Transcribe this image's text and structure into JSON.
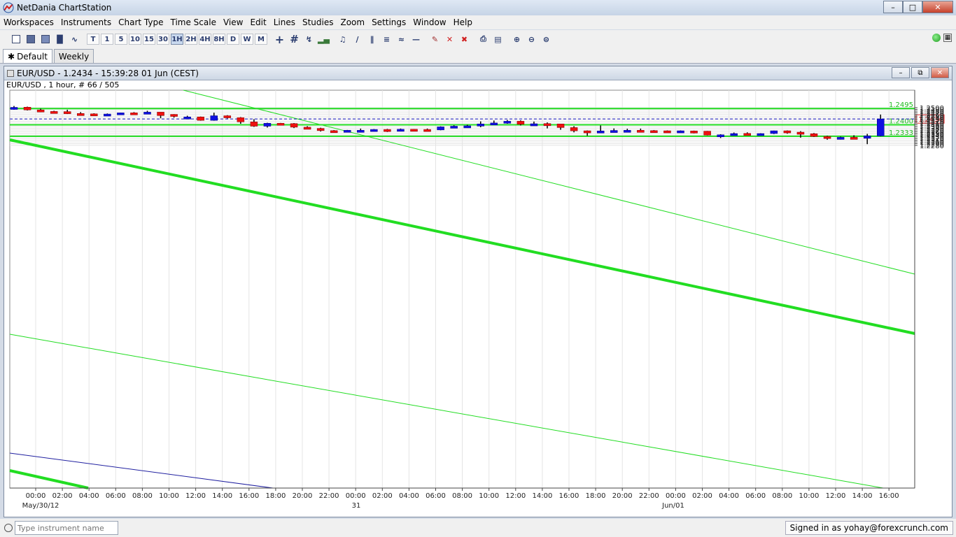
{
  "window": {
    "title": "NetDania ChartStation"
  },
  "menu": [
    "Workspaces",
    "Instruments",
    "Chart Type",
    "Time Scale",
    "View",
    "Edit",
    "Lines",
    "Studies",
    "Zoom",
    "Settings",
    "Window",
    "Help"
  ],
  "timescale_buttons": [
    "T",
    "1",
    "5",
    "10",
    "15",
    "30",
    "1H",
    "2H",
    "4H",
    "8H",
    "D",
    "W",
    "M"
  ],
  "active_timescale": "1H",
  "tabs": [
    "Default",
    "Weekly"
  ],
  "chart_window": {
    "title": "EUR/USD - 1.2434 - 15:39:28  01 Jun (CEST)",
    "info": "EUR/USD , 1 hour, # 66 / 505"
  },
  "search": {
    "placeholder": "Type instrument name"
  },
  "status": {
    "signed_in": "Signed in as yohay@forexcrunch.com"
  },
  "colors": {
    "up": "#1010e0",
    "down": "#ee1010",
    "trend": "#22dd22",
    "last_price_line": "#2020cc"
  },
  "chart_data": {
    "type": "candlestick",
    "title": "",
    "symbol": "EUR/USD",
    "interval": "1 hour",
    "ylim": [
      1.2275,
      1.251
    ],
    "yticks": [
      1.25,
      1.249,
      1.248,
      1.247,
      1.246,
      1.245,
      1.244,
      1.243,
      1.242,
      1.241,
      1.24,
      1.239,
      1.238,
      1.237,
      1.236,
      1.235,
      1.234,
      1.233,
      1.232,
      1.231,
      1.23,
      1.229,
      1.228
    ],
    "xticks": [
      "00:00",
      "02:00",
      "04:00",
      "06:00",
      "08:00",
      "10:00",
      "12:00",
      "14:00",
      "16:00",
      "18:00",
      "20:00",
      "22:00",
      "00:00",
      "02:00",
      "04:00",
      "06:00",
      "08:00",
      "10:00",
      "12:00",
      "14:00",
      "16:00",
      "18:00",
      "20:00",
      "22:00",
      "00:00",
      "02:00",
      "04:00",
      "06:00",
      "08:00",
      "10:00",
      "12:00",
      "14:00",
      "16:00"
    ],
    "date_labels": [
      "May/30/12",
      "31",
      "Jun/01"
    ],
    "last_price": "1.2434",
    "horizontal_levels": [
      {
        "value": 1.2495,
        "label": "1.2495"
      },
      {
        "value": 1.24,
        "label": "1.2400"
      },
      {
        "value": 1.2333,
        "label": "1.2333"
      }
    ],
    "candles": [
      {
        "o": 1.2498,
        "h": 1.251,
        "l": 1.2488,
        "c": 1.2502
      },
      {
        "o": 1.2503,
        "h": 1.2506,
        "l": 1.2484,
        "c": 1.2487
      },
      {
        "o": 1.2487,
        "h": 1.2494,
        "l": 1.2474,
        "c": 1.2476
      },
      {
        "o": 1.2478,
        "h": 1.2482,
        "l": 1.2474,
        "c": 1.2477
      },
      {
        "o": 1.2477,
        "h": 1.2488,
        "l": 1.2463,
        "c": 1.2465
      },
      {
        "o": 1.2466,
        "h": 1.2474,
        "l": 1.2459,
        "c": 1.2463
      },
      {
        "o": 1.2464,
        "h": 1.2467,
        "l": 1.2457,
        "c": 1.2462
      },
      {
        "o": 1.2462,
        "h": 1.2466,
        "l": 1.246,
        "c": 1.2463
      },
      {
        "o": 1.2462,
        "h": 1.2471,
        "l": 1.246,
        "c": 1.247
      },
      {
        "o": 1.247,
        "h": 1.2474,
        "l": 1.2462,
        "c": 1.2468
      },
      {
        "o": 1.2468,
        "h": 1.2482,
        "l": 1.2463,
        "c": 1.2474
      },
      {
        "o": 1.2474,
        "h": 1.2474,
        "l": 1.2438,
        "c": 1.2454
      },
      {
        "o": 1.2461,
        "h": 1.2462,
        "l": 1.2442,
        "c": 1.2452
      },
      {
        "o": 1.2446,
        "h": 1.2453,
        "l": 1.2433,
        "c": 1.2446
      },
      {
        "o": 1.2446,
        "h": 1.2448,
        "l": 1.2424,
        "c": 1.2426
      },
      {
        "o": 1.2426,
        "h": 1.2471,
        "l": 1.2424,
        "c": 1.2453
      },
      {
        "o": 1.2453,
        "h": 1.2456,
        "l": 1.2437,
        "c": 1.2442
      },
      {
        "o": 1.2442,
        "h": 1.2445,
        "l": 1.2406,
        "c": 1.2417
      },
      {
        "o": 1.2417,
        "h": 1.2433,
        "l": 1.2388,
        "c": 1.2392
      },
      {
        "o": 1.2392,
        "h": 1.2412,
        "l": 1.2384,
        "c": 1.2409
      },
      {
        "o": 1.2409,
        "h": 1.2411,
        "l": 1.2396,
        "c": 1.2407
      },
      {
        "o": 1.2407,
        "h": 1.241,
        "l": 1.2381,
        "c": 1.2386
      },
      {
        "o": 1.2386,
        "h": 1.2392,
        "l": 1.2378,
        "c": 1.2379
      },
      {
        "o": 1.2379,
        "h": 1.2383,
        "l": 1.2361,
        "c": 1.2366
      },
      {
        "o": 1.2366,
        "h": 1.2369,
        "l": 1.2363,
        "c": 1.2363
      },
      {
        "o": 1.2365,
        "h": 1.237,
        "l": 1.2363,
        "c": 1.2368
      },
      {
        "o": 1.2368,
        "h": 1.2378,
        "l": 1.236,
        "c": 1.2368
      },
      {
        "o": 1.2367,
        "h": 1.2375,
        "l": 1.2365,
        "c": 1.2373
      },
      {
        "o": 1.2373,
        "h": 1.2376,
        "l": 1.2358,
        "c": 1.2366
      },
      {
        "o": 1.2366,
        "h": 1.2378,
        "l": 1.2362,
        "c": 1.2374
      },
      {
        "o": 1.2374,
        "h": 1.2375,
        "l": 1.2365,
        "c": 1.2372
      },
      {
        "o": 1.2373,
        "h": 1.2378,
        "l": 1.2368,
        "c": 1.237
      },
      {
        "o": 1.237,
        "h": 1.2391,
        "l": 1.2368,
        "c": 1.2388
      },
      {
        "o": 1.2387,
        "h": 1.2397,
        "l": 1.2385,
        "c": 1.2392
      },
      {
        "o": 1.2392,
        "h": 1.24,
        "l": 1.2382,
        "c": 1.2394
      },
      {
        "o": 1.2394,
        "h": 1.242,
        "l": 1.2386,
        "c": 1.2405
      },
      {
        "o": 1.2405,
        "h": 1.2425,
        "l": 1.24,
        "c": 1.2411
      },
      {
        "o": 1.2411,
        "h": 1.2428,
        "l": 1.2406,
        "c": 1.2421
      },
      {
        "o": 1.2421,
        "h": 1.2426,
        "l": 1.2396,
        "c": 1.2403
      },
      {
        "o": 1.2403,
        "h": 1.2419,
        "l": 1.2398,
        "c": 1.2406
      },
      {
        "o": 1.2407,
        "h": 1.2414,
        "l": 1.2379,
        "c": 1.2404
      },
      {
        "o": 1.2405,
        "h": 1.2405,
        "l": 1.2371,
        "c": 1.2384
      },
      {
        "o": 1.2384,
        "h": 1.2392,
        "l": 1.2356,
        "c": 1.2365
      },
      {
        "o": 1.2365,
        "h": 1.2367,
        "l": 1.2336,
        "c": 1.2363
      },
      {
        "o": 1.2363,
        "h": 1.2396,
        "l": 1.2357,
        "c": 1.2364
      },
      {
        "o": 1.2363,
        "h": 1.2379,
        "l": 1.2358,
        "c": 1.2367
      },
      {
        "o": 1.2366,
        "h": 1.2377,
        "l": 1.236,
        "c": 1.2368
      },
      {
        "o": 1.2368,
        "h": 1.2378,
        "l": 1.2364,
        "c": 1.2366
      },
      {
        "o": 1.2366,
        "h": 1.2369,
        "l": 1.2356,
        "c": 1.2365
      },
      {
        "o": 1.2365,
        "h": 1.2367,
        "l": 1.2359,
        "c": 1.236
      },
      {
        "o": 1.236,
        "h": 1.2367,
        "l": 1.2359,
        "c": 1.2365
      },
      {
        "o": 1.2364,
        "h": 1.2366,
        "l": 1.235,
        "c": 1.2362
      },
      {
        "o": 1.2363,
        "h": 1.2364,
        "l": 1.2338,
        "c": 1.234
      },
      {
        "o": 1.2338,
        "h": 1.2345,
        "l": 1.2323,
        "c": 1.2342
      },
      {
        "o": 1.2342,
        "h": 1.2355,
        "l": 1.2338,
        "c": 1.2349
      },
      {
        "o": 1.235,
        "h": 1.2356,
        "l": 1.2342,
        "c": 1.2346
      },
      {
        "o": 1.2347,
        "h": 1.2351,
        "l": 1.234,
        "c": 1.2349
      },
      {
        "o": 1.2349,
        "h": 1.2366,
        "l": 1.2346,
        "c": 1.2365
      },
      {
        "o": 1.2365,
        "h": 1.2367,
        "l": 1.2348,
        "c": 1.2357
      },
      {
        "o": 1.2357,
        "h": 1.2363,
        "l": 1.2325,
        "c": 1.2348
      },
      {
        "o": 1.2348,
        "h": 1.2352,
        "l": 1.2329,
        "c": 1.2332
      },
      {
        "o": 1.2332,
        "h": 1.2336,
        "l": 1.2313,
        "c": 1.2323
      },
      {
        "o": 1.2323,
        "h": 1.2331,
        "l": 1.2314,
        "c": 1.2327
      },
      {
        "o": 1.2327,
        "h": 1.2339,
        "l": 1.232,
        "c": 1.2321
      },
      {
        "o": 1.2321,
        "h": 1.2347,
        "l": 1.2287,
        "c": 1.2335
      },
      {
        "o": 1.2335,
        "h": 1.246,
        "l": 1.2333,
        "c": 1.2434
      }
    ]
  }
}
